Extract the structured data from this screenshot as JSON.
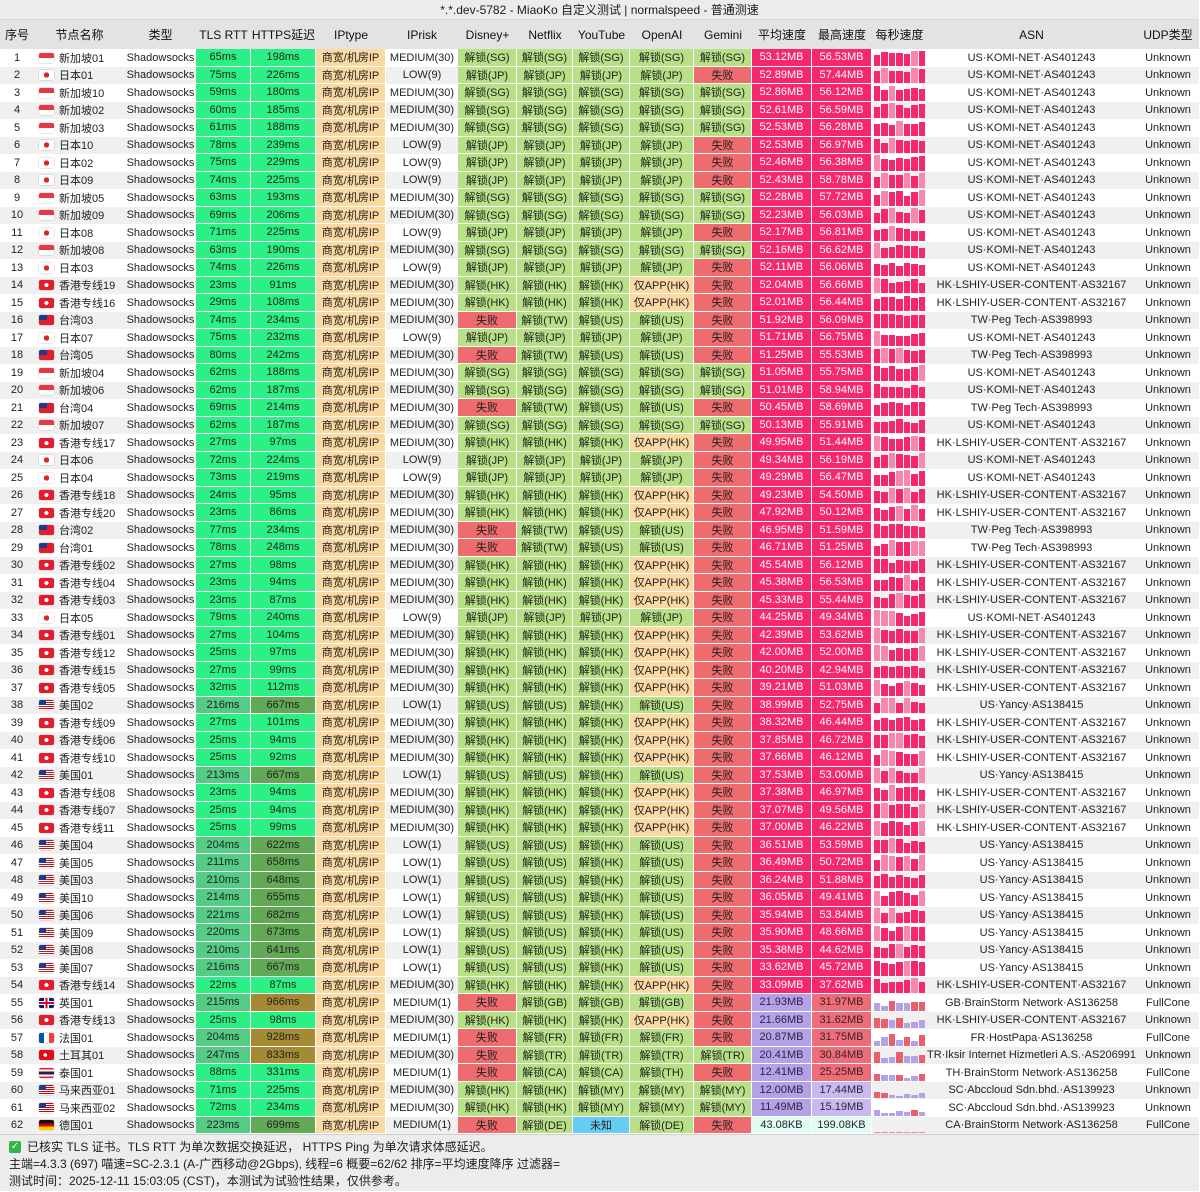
{
  "title": "*.*.dev-5782 - MiaoKo 自定义测试 | normalspeed - 普通测速",
  "columns": [
    "序号",
    "节点名称",
    "类型",
    "TLS RTT",
    "HTTPS延迟",
    "IPtype",
    "IPrisk",
    "Disney+",
    "Netflix",
    "YouTube",
    "OpenAI",
    "Gemini",
    "平均速度",
    "最高速度",
    "每秒速度",
    "ASN",
    "UDP类型"
  ],
  "type_label": "Shadowsocks",
  "iptype_label": "商宽/机房IP",
  "colors": {
    "chrome": "#ececec",
    "header": "#e3e3e3",
    "green-bright": "#2bf084",
    "green-mid": "#53cd83",
    "green-dark": "#62a956",
    "olive": "#a58a33",
    "unlock": "#b7e087",
    "fail": "#ee6b6e",
    "orange": "#fbd9a3",
    "blue": "#63cdf2",
    "pink": "#f4276f",
    "salmon": "#ee6d78",
    "purple": "#b5a1e8",
    "lpurple": "#c9b9ee",
    "pale": "#e2fbf2"
  },
  "rows": [
    [
      "sg",
      "新加坡01",
      "65ms",
      "198ms",
      "MEDIUM(30)",
      "解锁(SG)",
      "解锁(SG)",
      "解锁(SG)",
      "解锁(SG)",
      "解锁(SG)",
      "53.12MB",
      "56.53MB",
      "US·KOMI-NET·AS401243",
      "Unknown"
    ],
    [
      "jp",
      "日本01",
      "75ms",
      "226ms",
      "LOW(9)",
      "解锁(JP)",
      "解锁(JP)",
      "解锁(JP)",
      "解锁(JP)",
      "失败",
      "52.89MB",
      "57.44MB",
      "US·KOMI-NET·AS401243",
      "Unknown"
    ],
    [
      "sg",
      "新加坡10",
      "59ms",
      "180ms",
      "MEDIUM(30)",
      "解锁(SG)",
      "解锁(SG)",
      "解锁(SG)",
      "解锁(SG)",
      "解锁(SG)",
      "52.86MB",
      "56.12MB",
      "US·KOMI-NET·AS401243",
      "Unknown"
    ],
    [
      "sg",
      "新加坡02",
      "60ms",
      "185ms",
      "MEDIUM(30)",
      "解锁(SG)",
      "解锁(SG)",
      "解锁(SG)",
      "解锁(SG)",
      "解锁(SG)",
      "52.61MB",
      "56.59MB",
      "US·KOMI-NET·AS401243",
      "Unknown"
    ],
    [
      "sg",
      "新加坡03",
      "61ms",
      "188ms",
      "MEDIUM(30)",
      "解锁(SG)",
      "解锁(SG)",
      "解锁(SG)",
      "解锁(SG)",
      "解锁(SG)",
      "52.53MB",
      "56.28MB",
      "US·KOMI-NET·AS401243",
      "Unknown"
    ],
    [
      "jp",
      "日本10",
      "78ms",
      "239ms",
      "LOW(9)",
      "解锁(JP)",
      "解锁(JP)",
      "解锁(JP)",
      "解锁(JP)",
      "失败",
      "52.53MB",
      "56.97MB",
      "US·KOMI-NET·AS401243",
      "Unknown"
    ],
    [
      "jp",
      "日本02",
      "75ms",
      "229ms",
      "LOW(9)",
      "解锁(JP)",
      "解锁(JP)",
      "解锁(JP)",
      "解锁(JP)",
      "失败",
      "52.46MB",
      "56.38MB",
      "US·KOMI-NET·AS401243",
      "Unknown"
    ],
    [
      "jp",
      "日本09",
      "74ms",
      "225ms",
      "LOW(9)",
      "解锁(JP)",
      "解锁(JP)",
      "解锁(JP)",
      "解锁(JP)",
      "失败",
      "52.43MB",
      "58.78MB",
      "US·KOMI-NET·AS401243",
      "Unknown"
    ],
    [
      "sg",
      "新加坡05",
      "63ms",
      "193ms",
      "MEDIUM(30)",
      "解锁(SG)",
      "解锁(SG)",
      "解锁(SG)",
      "解锁(SG)",
      "解锁(SG)",
      "52.28MB",
      "57.72MB",
      "US·KOMI-NET·AS401243",
      "Unknown"
    ],
    [
      "sg",
      "新加坡09",
      "69ms",
      "206ms",
      "MEDIUM(30)",
      "解锁(SG)",
      "解锁(SG)",
      "解锁(SG)",
      "解锁(SG)",
      "解锁(SG)",
      "52.23MB",
      "56.03MB",
      "US·KOMI-NET·AS401243",
      "Unknown"
    ],
    [
      "jp",
      "日本08",
      "71ms",
      "225ms",
      "LOW(9)",
      "解锁(JP)",
      "解锁(JP)",
      "解锁(JP)",
      "解锁(JP)",
      "失败",
      "52.17MB",
      "56.81MB",
      "US·KOMI-NET·AS401243",
      "Unknown"
    ],
    [
      "sg",
      "新加坡08",
      "63ms",
      "190ms",
      "MEDIUM(30)",
      "解锁(SG)",
      "解锁(SG)",
      "解锁(SG)",
      "解锁(SG)",
      "解锁(SG)",
      "52.16MB",
      "56.62MB",
      "US·KOMI-NET·AS401243",
      "Unknown"
    ],
    [
      "jp",
      "日本03",
      "74ms",
      "226ms",
      "LOW(9)",
      "解锁(JP)",
      "解锁(JP)",
      "解锁(JP)",
      "解锁(JP)",
      "失败",
      "52.11MB",
      "56.06MB",
      "US·KOMI-NET·AS401243",
      "Unknown"
    ],
    [
      "hk",
      "香港专线19",
      "23ms",
      "91ms",
      "MEDIUM(30)",
      "解锁(HK)",
      "解锁(HK)",
      "解锁(HK)",
      "仅APP(HK)",
      "失败",
      "52.04MB",
      "56.66MB",
      "HK·LSHIY-USER-CONTENT·AS32167",
      "Unknown"
    ],
    [
      "hk",
      "香港专线16",
      "29ms",
      "108ms",
      "MEDIUM(30)",
      "解锁(HK)",
      "解锁(HK)",
      "解锁(HK)",
      "仅APP(HK)",
      "失败",
      "52.01MB",
      "56.44MB",
      "HK·LSHIY-USER-CONTENT·AS32167",
      "Unknown"
    ],
    [
      "tw",
      "台湾03",
      "74ms",
      "234ms",
      "MEDIUM(30)",
      "失败",
      "解锁(TW)",
      "解锁(US)",
      "解锁(US)",
      "失败",
      "51.92MB",
      "56.09MB",
      "TW·Peg Tech·AS398993",
      "Unknown"
    ],
    [
      "jp",
      "日本07",
      "75ms",
      "232ms",
      "LOW(9)",
      "解锁(JP)",
      "解锁(JP)",
      "解锁(JP)",
      "解锁(JP)",
      "失败",
      "51.71MB",
      "56.75MB",
      "US·KOMI-NET·AS401243",
      "Unknown"
    ],
    [
      "tw",
      "台湾05",
      "80ms",
      "242ms",
      "MEDIUM(30)",
      "失败",
      "解锁(TW)",
      "解锁(US)",
      "解锁(US)",
      "失败",
      "51.25MB",
      "55.53MB",
      "TW·Peg Tech·AS398993",
      "Unknown"
    ],
    [
      "sg",
      "新加坡04",
      "62ms",
      "188ms",
      "MEDIUM(30)",
      "解锁(SG)",
      "解锁(SG)",
      "解锁(SG)",
      "解锁(SG)",
      "解锁(SG)",
      "51.05MB",
      "55.75MB",
      "US·KOMI-NET·AS401243",
      "Unknown"
    ],
    [
      "sg",
      "新加坡06",
      "62ms",
      "187ms",
      "MEDIUM(30)",
      "解锁(SG)",
      "解锁(SG)",
      "解锁(SG)",
      "解锁(SG)",
      "解锁(SG)",
      "51.01MB",
      "58.94MB",
      "US·KOMI-NET·AS401243",
      "Unknown"
    ],
    [
      "tw",
      "台湾04",
      "69ms",
      "214ms",
      "MEDIUM(30)",
      "失败",
      "解锁(TW)",
      "解锁(US)",
      "解锁(US)",
      "失败",
      "50.45MB",
      "58.69MB",
      "TW·Peg Tech·AS398993",
      "Unknown"
    ],
    [
      "sg",
      "新加坡07",
      "62ms",
      "187ms",
      "MEDIUM(30)",
      "解锁(SG)",
      "解锁(SG)",
      "解锁(SG)",
      "解锁(SG)",
      "解锁(SG)",
      "50.13MB",
      "55.91MB",
      "US·KOMI-NET·AS401243",
      "Unknown"
    ],
    [
      "hk",
      "香港专线17",
      "27ms",
      "97ms",
      "MEDIUM(30)",
      "解锁(HK)",
      "解锁(HK)",
      "解锁(HK)",
      "仅APP(HK)",
      "失败",
      "49.95MB",
      "51.44MB",
      "HK·LSHIY-USER-CONTENT·AS32167",
      "Unknown"
    ],
    [
      "jp",
      "日本06",
      "72ms",
      "224ms",
      "LOW(9)",
      "解锁(JP)",
      "解锁(JP)",
      "解锁(JP)",
      "解锁(JP)",
      "失败",
      "49.34MB",
      "56.19MB",
      "US·KOMI-NET·AS401243",
      "Unknown"
    ],
    [
      "jp",
      "日本04",
      "73ms",
      "219ms",
      "LOW(9)",
      "解锁(JP)",
      "解锁(JP)",
      "解锁(JP)",
      "解锁(JP)",
      "失败",
      "49.29MB",
      "56.47MB",
      "US·KOMI-NET·AS401243",
      "Unknown"
    ],
    [
      "hk",
      "香港专线18",
      "24ms",
      "95ms",
      "MEDIUM(30)",
      "解锁(HK)",
      "解锁(HK)",
      "解锁(HK)",
      "仅APP(HK)",
      "失败",
      "49.23MB",
      "54.50MB",
      "HK·LSHIY-USER-CONTENT·AS32167",
      "Unknown"
    ],
    [
      "hk",
      "香港专线20",
      "23ms",
      "86ms",
      "MEDIUM(30)",
      "解锁(HK)",
      "解锁(HK)",
      "解锁(HK)",
      "仅APP(HK)",
      "失败",
      "47.92MB",
      "50.12MB",
      "HK·LSHIY-USER-CONTENT·AS32167",
      "Unknown"
    ],
    [
      "tw",
      "台湾02",
      "77ms",
      "234ms",
      "MEDIUM(30)",
      "失败",
      "解锁(TW)",
      "解锁(US)",
      "解锁(US)",
      "失败",
      "46.95MB",
      "51.59MB",
      "TW·Peg Tech·AS398993",
      "Unknown"
    ],
    [
      "tw",
      "台湾01",
      "78ms",
      "248ms",
      "MEDIUM(30)",
      "失败",
      "解锁(TW)",
      "解锁(US)",
      "解锁(US)",
      "失败",
      "46.71MB",
      "51.25MB",
      "TW·Peg Tech·AS398993",
      "Unknown"
    ],
    [
      "hk",
      "香港专线02",
      "27ms",
      "98ms",
      "MEDIUM(30)",
      "解锁(HK)",
      "解锁(HK)",
      "解锁(HK)",
      "仅APP(HK)",
      "失败",
      "45.54MB",
      "56.12MB",
      "HK·LSHIY-USER-CONTENT·AS32167",
      "Unknown"
    ],
    [
      "hk",
      "香港专线04",
      "23ms",
      "94ms",
      "MEDIUM(30)",
      "解锁(HK)",
      "解锁(HK)",
      "解锁(HK)",
      "仅APP(HK)",
      "失败",
      "45.38MB",
      "56.53MB",
      "HK·LSHIY-USER-CONTENT·AS32167",
      "Unknown"
    ],
    [
      "hk",
      "香港专线03",
      "23ms",
      "87ms",
      "MEDIUM(30)",
      "解锁(HK)",
      "解锁(HK)",
      "解锁(HK)",
      "仅APP(HK)",
      "失败",
      "45.33MB",
      "55.44MB",
      "HK·LSHIY-USER-CONTENT·AS32167",
      "Unknown"
    ],
    [
      "jp",
      "日本05",
      "79ms",
      "240ms",
      "LOW(9)",
      "解锁(JP)",
      "解锁(JP)",
      "解锁(JP)",
      "解锁(JP)",
      "失败",
      "44.25MB",
      "49.34MB",
      "US·KOMI-NET·AS401243",
      "Unknown"
    ],
    [
      "hk",
      "香港专线01",
      "27ms",
      "104ms",
      "MEDIUM(30)",
      "解锁(HK)",
      "解锁(HK)",
      "解锁(HK)",
      "仅APP(HK)",
      "失败",
      "42.39MB",
      "53.62MB",
      "HK·LSHIY-USER-CONTENT·AS32167",
      "Unknown"
    ],
    [
      "hk",
      "香港专线12",
      "25ms",
      "97ms",
      "MEDIUM(30)",
      "解锁(HK)",
      "解锁(HK)",
      "解锁(HK)",
      "仅APP(HK)",
      "失败",
      "42.00MB",
      "52.00MB",
      "HK·LSHIY-USER-CONTENT·AS32167",
      "Unknown"
    ],
    [
      "hk",
      "香港专线15",
      "27ms",
      "99ms",
      "MEDIUM(30)",
      "解锁(HK)",
      "解锁(HK)",
      "解锁(HK)",
      "仅APP(HK)",
      "失败",
      "40.20MB",
      "42.94MB",
      "HK·LSHIY-USER-CONTENT·AS32167",
      "Unknown"
    ],
    [
      "hk",
      "香港专线05",
      "32ms",
      "112ms",
      "MEDIUM(30)",
      "解锁(HK)",
      "解锁(HK)",
      "解锁(HK)",
      "仅APP(HK)",
      "失败",
      "39.21MB",
      "51.03MB",
      "HK·LSHIY-USER-CONTENT·AS32167",
      "Unknown"
    ],
    [
      "us",
      "美国02",
      "216ms",
      "667ms",
      "LOW(1)",
      "解锁(US)",
      "解锁(US)",
      "解锁(HK)",
      "解锁(US)",
      "失败",
      "38.99MB",
      "52.75MB",
      "US·Yancy·AS138415",
      "Unknown"
    ],
    [
      "hk",
      "香港专线09",
      "27ms",
      "101ms",
      "MEDIUM(30)",
      "解锁(HK)",
      "解锁(HK)",
      "解锁(HK)",
      "仅APP(HK)",
      "失败",
      "38.32MB",
      "46.44MB",
      "HK·LSHIY-USER-CONTENT·AS32167",
      "Unknown"
    ],
    [
      "hk",
      "香港专线06",
      "25ms",
      "94ms",
      "MEDIUM(30)",
      "解锁(HK)",
      "解锁(HK)",
      "解锁(HK)",
      "仅APP(HK)",
      "失败",
      "37.85MB",
      "46.72MB",
      "HK·LSHIY-USER-CONTENT·AS32167",
      "Unknown"
    ],
    [
      "hk",
      "香港专线10",
      "25ms",
      "92ms",
      "MEDIUM(30)",
      "解锁(HK)",
      "解锁(HK)",
      "解锁(HK)",
      "仅APP(HK)",
      "失败",
      "37.66MB",
      "46.12MB",
      "HK·LSHIY-USER-CONTENT·AS32167",
      "Unknown"
    ],
    [
      "us",
      "美国01",
      "213ms",
      "667ms",
      "LOW(1)",
      "解锁(US)",
      "解锁(US)",
      "解锁(HK)",
      "解锁(US)",
      "失败",
      "37.53MB",
      "53.00MB",
      "US·Yancy·AS138415",
      "Unknown"
    ],
    [
      "hk",
      "香港专线08",
      "23ms",
      "94ms",
      "MEDIUM(30)",
      "解锁(HK)",
      "解锁(HK)",
      "解锁(HK)",
      "仅APP(HK)",
      "失败",
      "37.38MB",
      "46.97MB",
      "HK·LSHIY-USER-CONTENT·AS32167",
      "Unknown"
    ],
    [
      "hk",
      "香港专线07",
      "25ms",
      "94ms",
      "MEDIUM(30)",
      "解锁(HK)",
      "解锁(HK)",
      "解锁(HK)",
      "仅APP(HK)",
      "失败",
      "37.07MB",
      "49.56MB",
      "HK·LSHIY-USER-CONTENT·AS32167",
      "Unknown"
    ],
    [
      "hk",
      "香港专线11",
      "25ms",
      "99ms",
      "MEDIUM(30)",
      "解锁(HK)",
      "解锁(HK)",
      "解锁(HK)",
      "仅APP(HK)",
      "失败",
      "37.00MB",
      "46.22MB",
      "HK·LSHIY-USER-CONTENT·AS32167",
      "Unknown"
    ],
    [
      "us",
      "美国04",
      "204ms",
      "622ms",
      "LOW(1)",
      "解锁(US)",
      "解锁(US)",
      "解锁(HK)",
      "解锁(US)",
      "失败",
      "36.51MB",
      "53.59MB",
      "US·Yancy·AS138415",
      "Unknown"
    ],
    [
      "us",
      "美国05",
      "211ms",
      "658ms",
      "LOW(1)",
      "解锁(US)",
      "解锁(US)",
      "解锁(HK)",
      "解锁(US)",
      "失败",
      "36.49MB",
      "50.72MB",
      "US·Yancy·AS138415",
      "Unknown"
    ],
    [
      "us",
      "美国03",
      "210ms",
      "648ms",
      "LOW(1)",
      "解锁(US)",
      "解锁(US)",
      "解锁(HK)",
      "解锁(US)",
      "失败",
      "36.24MB",
      "51.88MB",
      "US·Yancy·AS138415",
      "Unknown"
    ],
    [
      "us",
      "美国10",
      "214ms",
      "655ms",
      "LOW(1)",
      "解锁(US)",
      "解锁(US)",
      "解锁(HK)",
      "解锁(US)",
      "失败",
      "36.05MB",
      "49.41MB",
      "US·Yancy·AS138415",
      "Unknown"
    ],
    [
      "us",
      "美国06",
      "221ms",
      "682ms",
      "LOW(1)",
      "解锁(US)",
      "解锁(US)",
      "解锁(HK)",
      "解锁(US)",
      "失败",
      "35.94MB",
      "53.84MB",
      "US·Yancy·AS138415",
      "Unknown"
    ],
    [
      "us",
      "美国09",
      "220ms",
      "673ms",
      "LOW(1)",
      "解锁(US)",
      "解锁(US)",
      "解锁(HK)",
      "解锁(US)",
      "失败",
      "35.90MB",
      "48.66MB",
      "US·Yancy·AS138415",
      "Unknown"
    ],
    [
      "us",
      "美国08",
      "210ms",
      "641ms",
      "LOW(1)",
      "解锁(US)",
      "解锁(US)",
      "解锁(HK)",
      "解锁(US)",
      "失败",
      "35.38MB",
      "44.62MB",
      "US·Yancy·AS138415",
      "Unknown"
    ],
    [
      "us",
      "美国07",
      "216ms",
      "667ms",
      "LOW(1)",
      "解锁(US)",
      "解锁(US)",
      "解锁(HK)",
      "解锁(US)",
      "失败",
      "33.62MB",
      "45.72MB",
      "US·Yancy·AS138415",
      "Unknown"
    ],
    [
      "hk",
      "香港专线14",
      "22ms",
      "87ms",
      "MEDIUM(30)",
      "解锁(HK)",
      "解锁(HK)",
      "解锁(HK)",
      "仅APP(HK)",
      "失败",
      "33.09MB",
      "37.62MB",
      "HK·LSHIY-USER-CONTENT·AS32167",
      "Unknown"
    ],
    [
      "gb",
      "英国01",
      "215ms",
      "966ms",
      "MEDIUM(1)",
      "失败",
      "解锁(GB)",
      "解锁(GB)",
      "解锁(GB)",
      "失败",
      "21.93MB",
      "31.97MB",
      "GB·BrainStorm Network·AS136258",
      "FullCone"
    ],
    [
      "hk",
      "香港专线13",
      "25ms",
      "98ms",
      "MEDIUM(30)",
      "解锁(HK)",
      "解锁(HK)",
      "解锁(HK)",
      "仅APP(HK)",
      "失败",
      "21.66MB",
      "31.62MB",
      "HK·LSHIY-USER-CONTENT·AS32167",
      "Unknown"
    ],
    [
      "fr",
      "法国01",
      "204ms",
      "928ms",
      "MEDIUM(1)",
      "失败",
      "解锁(FR)",
      "解锁(FR)",
      "解锁(FR)",
      "失败",
      "20.87MB",
      "31.75MB",
      "FR·HostPapa·AS136258",
      "FullCone"
    ],
    [
      "tr",
      "土耳其01",
      "247ms",
      "833ms",
      "MEDIUM(30)",
      "失败",
      "解锁(TR)",
      "解锁(TR)",
      "解锁(TR)",
      "解锁(TR)",
      "20.41MB",
      "30.84MB",
      "TR·Iksir Internet Hizmetleri A.S.·AS206991",
      "Unknown"
    ],
    [
      "th",
      "泰国01",
      "88ms",
      "331ms",
      "MEDIUM(1)",
      "失败",
      "解锁(CA)",
      "解锁(CA)",
      "解锁(TH)",
      "失败",
      "12.41MB",
      "25.25MB",
      "TH·BrainStorm Network·AS136258",
      "FullCone"
    ],
    [
      "my",
      "马来西亚01",
      "71ms",
      "225ms",
      "MEDIUM(30)",
      "解锁(HK)",
      "解锁(HK)",
      "解锁(MY)",
      "解锁(MY)",
      "解锁(MY)",
      "12.00MB",
      "17.44MB",
      "SC·Abccloud Sdn.bhd.·AS139923",
      "Unknown"
    ],
    [
      "my",
      "马来西亚02",
      "72ms",
      "234ms",
      "MEDIUM(30)",
      "解锁(HK)",
      "解锁(HK)",
      "解锁(MY)",
      "解锁(MY)",
      "解锁(MY)",
      "11.49MB",
      "15.19MB",
      "SC·Abccloud Sdn.bhd.·AS139923",
      "Unknown"
    ],
    [
      "de",
      "德国01",
      "223ms",
      "699ms",
      "MEDIUM(1)",
      "失败",
      "解锁(DE)",
      "未知",
      "解锁(DE)",
      "失败",
      "43.08KB",
      "199.08KB",
      "CA·BrainStorm Network·AS136258",
      "FullCone"
    ]
  ],
  "footer": {
    "line1": "已核实 TLS 证书。TLS RTT 为单次数据交换延迟， HTTPS Ping 为单次请求体感延迟。",
    "line2": "主端=4.3.3 (697) 喵速=SC-2.3.1 (A-广西移动@2Gbps), 线程=6 概要=62/62 排序=平均速度降序 过滤器=",
    "line3": "测试时间：2025-12-11 15:03:05 (CST)，本测试为试验性结果，仅供参考。"
  }
}
